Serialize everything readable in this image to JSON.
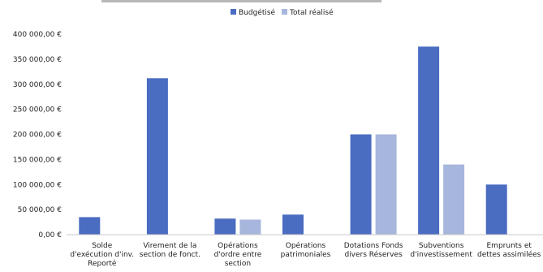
{
  "chart_data": {
    "type": "bar",
    "categories": [
      [
        "Solde",
        "d'exécution d'inv.",
        "Reporté"
      ],
      [
        "Virement de la",
        "section de fonct."
      ],
      [
        "Opérations",
        "d'ordre entre",
        "section"
      ],
      [
        "Opérations",
        "patrimoniales"
      ],
      [
        "Dotations Fonds",
        "divers Réserves"
      ],
      [
        "Subventions",
        "d'investissement"
      ],
      [
        "Emprunts et",
        "dettes assimilées"
      ]
    ],
    "series": [
      {
        "name": "Budgétisé",
        "color": "#4a6cc1",
        "values": [
          35000,
          312000,
          32000,
          40000,
          200000,
          375000,
          100000
        ]
      },
      {
        "name": "Total réalisé",
        "color": "#a6b6dc",
        "values": [
          0,
          0,
          30000,
          0,
          200000,
          140000,
          0
        ]
      }
    ],
    "yticks": [
      "0,00 €",
      "50 000,00 €",
      "100 000,00 €",
      "150 000,00 €",
      "200 000,00 €",
      "250 000,00 €",
      "300 000,00 €",
      "350 000,00 €",
      "400 000,00 €"
    ],
    "ylim": [
      0,
      400000
    ],
    "grid": false,
    "legend": "top-center"
  }
}
